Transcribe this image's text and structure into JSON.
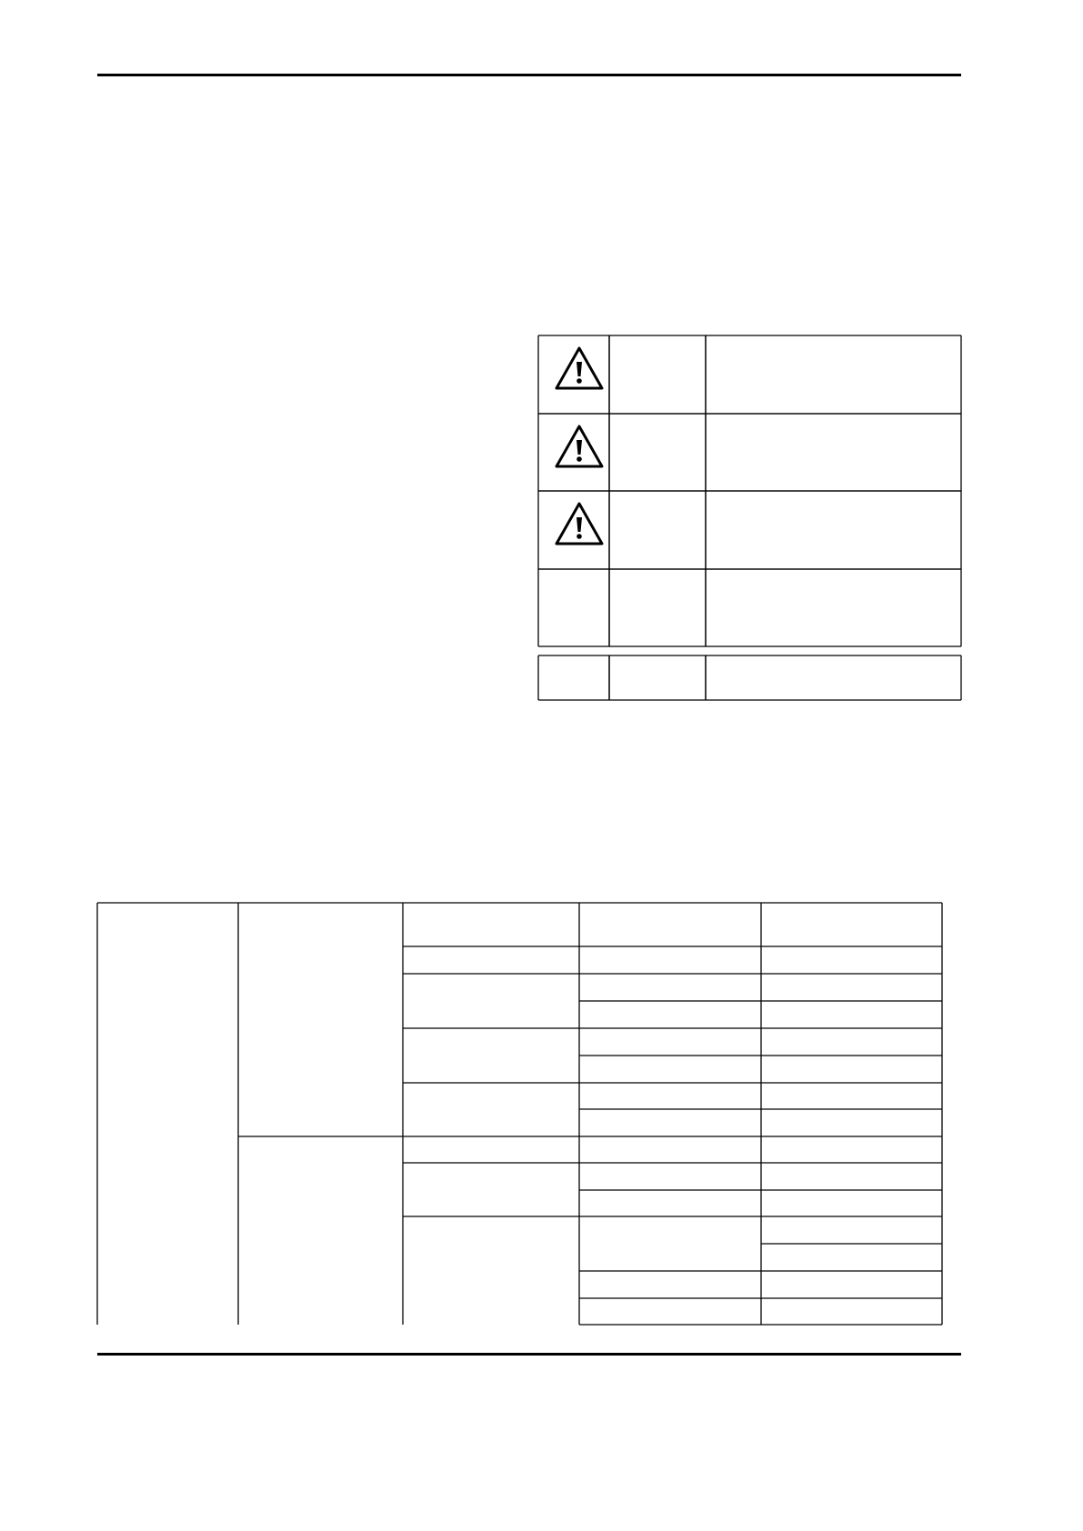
{
  "colors": {
    "ink": "#000000",
    "paper": "#ffffff"
  },
  "warning_table": {
    "rows": [
      {
        "icon": "warning-triangle-icon"
      },
      {
        "icon": "warning-triangle-icon"
      },
      {
        "icon": "warning-triangle-icon"
      },
      {
        "icon": ""
      }
    ],
    "note_row": {
      "icon": ""
    }
  },
  "grid_table": {}
}
